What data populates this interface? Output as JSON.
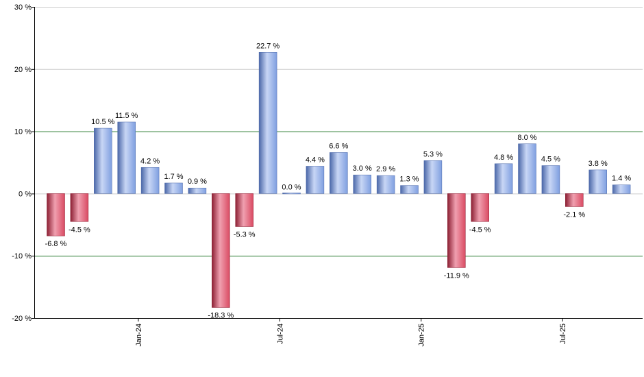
{
  "chart_data": {
    "type": "bar",
    "title": "",
    "xlabel": "",
    "ylabel": "",
    "ylim": [
      -20,
      30
    ],
    "y_ticks": [
      -20,
      -10,
      0,
      10,
      20,
      30
    ],
    "y_tick_suffix": " %",
    "grid": true,
    "reference_lines": [
      -10,
      10
    ],
    "x_tick_labels": [
      {
        "label": "Jan-24",
        "after_bar": 3
      },
      {
        "label": "Jul-24",
        "after_bar": 9
      },
      {
        "label": "Jan-25",
        "after_bar": 15
      },
      {
        "label": "Jul-25",
        "after_bar": 21
      }
    ],
    "values": [
      -6.8,
      -4.5,
      10.5,
      11.5,
      4.2,
      1.7,
      0.9,
      -18.3,
      -5.3,
      22.7,
      0.0,
      4.4,
      6.6,
      3.0,
      2.9,
      1.3,
      5.3,
      -11.9,
      -4.5,
      4.8,
      8.0,
      4.5,
      -2.1,
      3.8,
      1.4
    ],
    "data_labels": [
      "-6.8 %",
      "-4.5 %",
      "10.5 %",
      "11.5 %",
      "4.2 %",
      "1.7 %",
      "0.9 %",
      "-18.3 %",
      "-5.3 %",
      "22.7 %",
      "0.0 %",
      "4.4 %",
      "6.6 %",
      "3.0 %",
      "2.9 %",
      "1.3 %",
      "5.3 %",
      "-11.9 %",
      "-4.5 %",
      "4.8 %",
      "8.0 %",
      "4.5 %",
      "-2.1 %",
      "3.8 %",
      "1.4 %"
    ],
    "colors": {
      "positive": "#7f9fe0",
      "positive_light": "#c8d6f5",
      "positive_dark": "#4a67a8",
      "negative": "#d94a62",
      "negative_light": "#f0a0b0",
      "negative_dark": "#8c1f33",
      "grid": "#cccccc",
      "reference": "#2e7d32",
      "axis": "#000000"
    }
  }
}
